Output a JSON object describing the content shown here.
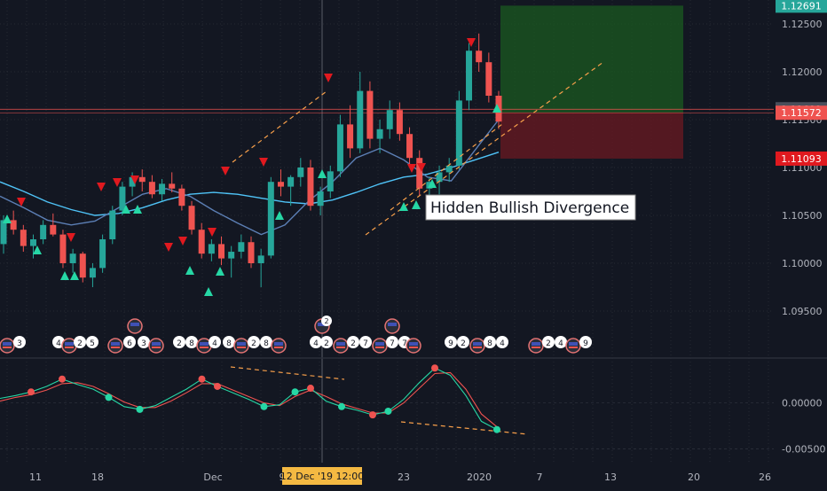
{
  "chart_data": {
    "type": "candlestick",
    "instrument_hint": "EUR/USD",
    "price_scale": {
      "ticks": [
        "1.12500",
        "1.12000",
        "1.11500",
        "1.11000",
        "1.10500",
        "1.10000",
        "1.09500"
      ],
      "tick_values": [
        1.125,
        1.12,
        1.115,
        1.11,
        1.105,
        1.1,
        1.095
      ],
      "ylim": [
        1.0925,
        1.1275
      ]
    },
    "badges": [
      {
        "label": "1.12691",
        "value": 1.12691,
        "color": "#26a69a"
      },
      {
        "label": "1.11609",
        "value": 1.11609,
        "color": "#4a4e5a"
      },
      {
        "label": "1.11572",
        "value": 1.11572,
        "color": "#ef5350"
      },
      {
        "label": "1.11093",
        "value": 1.11093,
        "color": "#e0191f"
      }
    ],
    "time_axis": {
      "ticks": [
        "11",
        "18",
        "Dec",
        "9",
        "23",
        "2020",
        "7",
        "13",
        "20",
        "26"
      ],
      "highlight": "12 Dec '19   12:00"
    },
    "candles_ohlc": [
      [
        1.102,
        1.105,
        1.101,
        1.1045
      ],
      [
        1.1045,
        1.1055,
        1.103,
        1.1035
      ],
      [
        1.1035,
        1.104,
        1.1012,
        1.1018
      ],
      [
        1.1018,
        1.103,
        1.1005,
        1.1025
      ],
      [
        1.1025,
        1.1045,
        1.102,
        1.104
      ],
      [
        1.104,
        1.1052,
        1.1028,
        1.103
      ],
      [
        1.103,
        1.1035,
        1.0995,
        1.1
      ],
      [
        1.1,
        1.1015,
        1.099,
        1.101
      ],
      [
        1.101,
        1.1012,
        1.098,
        1.0985
      ],
      [
        1.0985,
        1.1,
        1.0975,
        1.0995
      ],
      [
        1.0995,
        1.103,
        1.099,
        1.1025
      ],
      [
        1.1025,
        1.106,
        1.102,
        1.1055
      ],
      [
        1.1055,
        1.1085,
        1.105,
        1.108
      ],
      [
        1.108,
        1.1095,
        1.107,
        1.109
      ],
      [
        1.109,
        1.1098,
        1.1075,
        1.1085
      ],
      [
        1.1085,
        1.1092,
        1.1068,
        1.1072
      ],
      [
        1.1072,
        1.1088,
        1.1065,
        1.1083
      ],
      [
        1.1083,
        1.1095,
        1.1074,
        1.1078
      ],
      [
        1.1078,
        1.1082,
        1.1055,
        1.106
      ],
      [
        1.106,
        1.1065,
        1.103,
        1.1035
      ],
      [
        1.1035,
        1.1042,
        1.1005,
        1.101
      ],
      [
        1.101,
        1.1025,
        1.1002,
        1.102
      ],
      [
        1.102,
        1.1028,
        1.0998,
        1.1005
      ],
      [
        1.1005,
        1.1018,
        1.0985,
        1.1012
      ],
      [
        1.1012,
        1.103,
        1.1005,
        1.1022
      ],
      [
        1.1022,
        1.1028,
        1.0995,
        1.1
      ],
      [
        1.1,
        1.1015,
        1.0975,
        1.1008
      ],
      [
        1.1008,
        1.109,
        1.1005,
        1.1085
      ],
      [
        1.1085,
        1.1098,
        1.107,
        1.108
      ],
      [
        1.108,
        1.1092,
        1.106,
        1.109
      ],
      [
        1.109,
        1.111,
        1.108,
        1.11
      ],
      [
        1.11,
        1.1108,
        1.1055,
        1.106
      ],
      [
        1.106,
        1.108,
        1.105,
        1.1075
      ],
      [
        1.1075,
        1.1102,
        1.1068,
        1.1096
      ],
      [
        1.1096,
        1.1155,
        1.109,
        1.1145
      ],
      [
        1.1145,
        1.1165,
        1.111,
        1.112
      ],
      [
        1.112,
        1.12,
        1.1115,
        1.118
      ],
      [
        1.118,
        1.119,
        1.112,
        1.113
      ],
      [
        1.113,
        1.115,
        1.1115,
        1.114
      ],
      [
        1.114,
        1.117,
        1.113,
        1.116
      ],
      [
        1.116,
        1.1168,
        1.1128,
        1.1135
      ],
      [
        1.1135,
        1.1142,
        1.11,
        1.111
      ],
      [
        1.111,
        1.1118,
        1.107,
        1.1078
      ],
      [
        1.1078,
        1.109,
        1.1065,
        1.1085
      ],
      [
        1.1085,
        1.1102,
        1.1072,
        1.1095
      ],
      [
        1.1095,
        1.111,
        1.1085,
        1.1102
      ],
      [
        1.1102,
        1.118,
        1.1098,
        1.117
      ],
      [
        1.117,
        1.123,
        1.116,
        1.1222
      ],
      [
        1.1222,
        1.124,
        1.12,
        1.121
      ],
      [
        1.121,
        1.122,
        1.1168,
        1.1175
      ],
      [
        1.1175,
        1.118,
        1.114,
        1.1148
      ]
    ],
    "moving_averages": [
      {
        "color": "#4fc3f7",
        "values": [
          1.1085,
          1.1075,
          1.1064,
          1.1056,
          1.105,
          1.1052,
          1.1058,
          1.1066,
          1.1072,
          1.1074,
          1.1072,
          1.1068,
          1.1064,
          1.1062,
          1.1066,
          1.1074,
          1.1083,
          1.109,
          1.1093,
          1.11,
          1.1108,
          1.1116
        ]
      },
      {
        "color": "#5c7fb5",
        "values": [
          1.107,
          1.1058,
          1.1045,
          1.104,
          1.1044,
          1.1058,
          1.1072,
          1.1078,
          1.107,
          1.1055,
          1.1042,
          1.103,
          1.104,
          1.1065,
          1.1085,
          1.111,
          1.112,
          1.1108,
          1.109,
          1.1086,
          1.1118,
          1.115
        ]
      }
    ],
    "oscillator": {
      "scale": {
        "ticks": [
          "0.00000",
          "-0.00500"
        ],
        "tick_values": [
          0.0,
          -0.005
        ],
        "ylim": [
          -0.0065,
          0.0045
        ]
      },
      "fast": [
        0.0005,
        0.0008,
        0.0012,
        0.0018,
        0.0026,
        0.002,
        0.0015,
        0.0006,
        -0.0004,
        -0.0007,
        -0.0003,
        0.0006,
        0.0015,
        0.0026,
        0.0018,
        0.0011,
        0.0004,
        -0.0004,
        -0.0002,
        0.0012,
        0.0016,
        0.0002,
        -0.0004,
        -0.0008,
        -0.0013,
        -0.0009,
        0.0004,
        0.0022,
        0.0038,
        0.003,
        0.0008,
        -0.002,
        -0.0029
      ],
      "slow": [
        0.0002,
        0.0006,
        0.0009,
        0.0014,
        0.0021,
        0.0022,
        0.0018,
        0.001,
        0.0001,
        -0.0005,
        -0.0005,
        0.0002,
        0.0011,
        0.0021,
        0.0021,
        0.0014,
        0.0007,
        0.0,
        -0.0003,
        0.0007,
        0.0014,
        0.0007,
        -0.0001,
        -0.0006,
        -0.0011,
        -0.0011,
        0.0,
        0.0016,
        0.0032,
        0.0033,
        0.0015,
        -0.0012,
        -0.0026
      ],
      "cross_dots": [
        {
          "i": 2,
          "c": "#ef5350"
        },
        {
          "i": 4,
          "c": "#ef5350"
        },
        {
          "i": 7,
          "c": "#26d7a5"
        },
        {
          "i": 9,
          "c": "#26d7a5"
        },
        {
          "i": 13,
          "c": "#ef5350"
        },
        {
          "i": 14,
          "c": "#ef5350"
        },
        {
          "i": 17,
          "c": "#26d7a5"
        },
        {
          "i": 19,
          "c": "#26d7a5"
        },
        {
          "i": 20,
          "c": "#ef5350"
        },
        {
          "i": 22,
          "c": "#26d7a5"
        },
        {
          "i": 24,
          "c": "#ef5350"
        },
        {
          "i": 25,
          "c": "#26d7a5"
        },
        {
          "i": 28,
          "c": "#ef5350"
        },
        {
          "i": 32,
          "c": "#26d7a5"
        }
      ]
    },
    "annotations": {
      "label": "Hidden Bullish Divergence",
      "trade": {
        "entry": 1.11572,
        "target": 1.12691,
        "stop": 1.11093
      }
    },
    "event_flags_count": 22
  },
  "colors": {
    "background": "#131722",
    "grid": "#363a45",
    "up": "#26a69a",
    "down": "#ef5350",
    "signal_up": "#26d7a5",
    "signal_down": "#e0191f",
    "trend": "#f79f4a"
  },
  "calendar_flags": [
    "3",
    "4",
    "2",
    "5",
    "6",
    "3",
    "2",
    "8",
    "4",
    "8",
    "2",
    "8",
    "4",
    "2",
    "2",
    "7",
    "7",
    "7",
    "9",
    "2",
    "8",
    "4",
    "2",
    "4",
    "9",
    "2",
    "5",
    "3",
    "3",
    "4",
    "3",
    "2",
    "4",
    "5",
    "6",
    "4",
    "6"
  ],
  "calendar_flags_top": [
    "2"
  ]
}
